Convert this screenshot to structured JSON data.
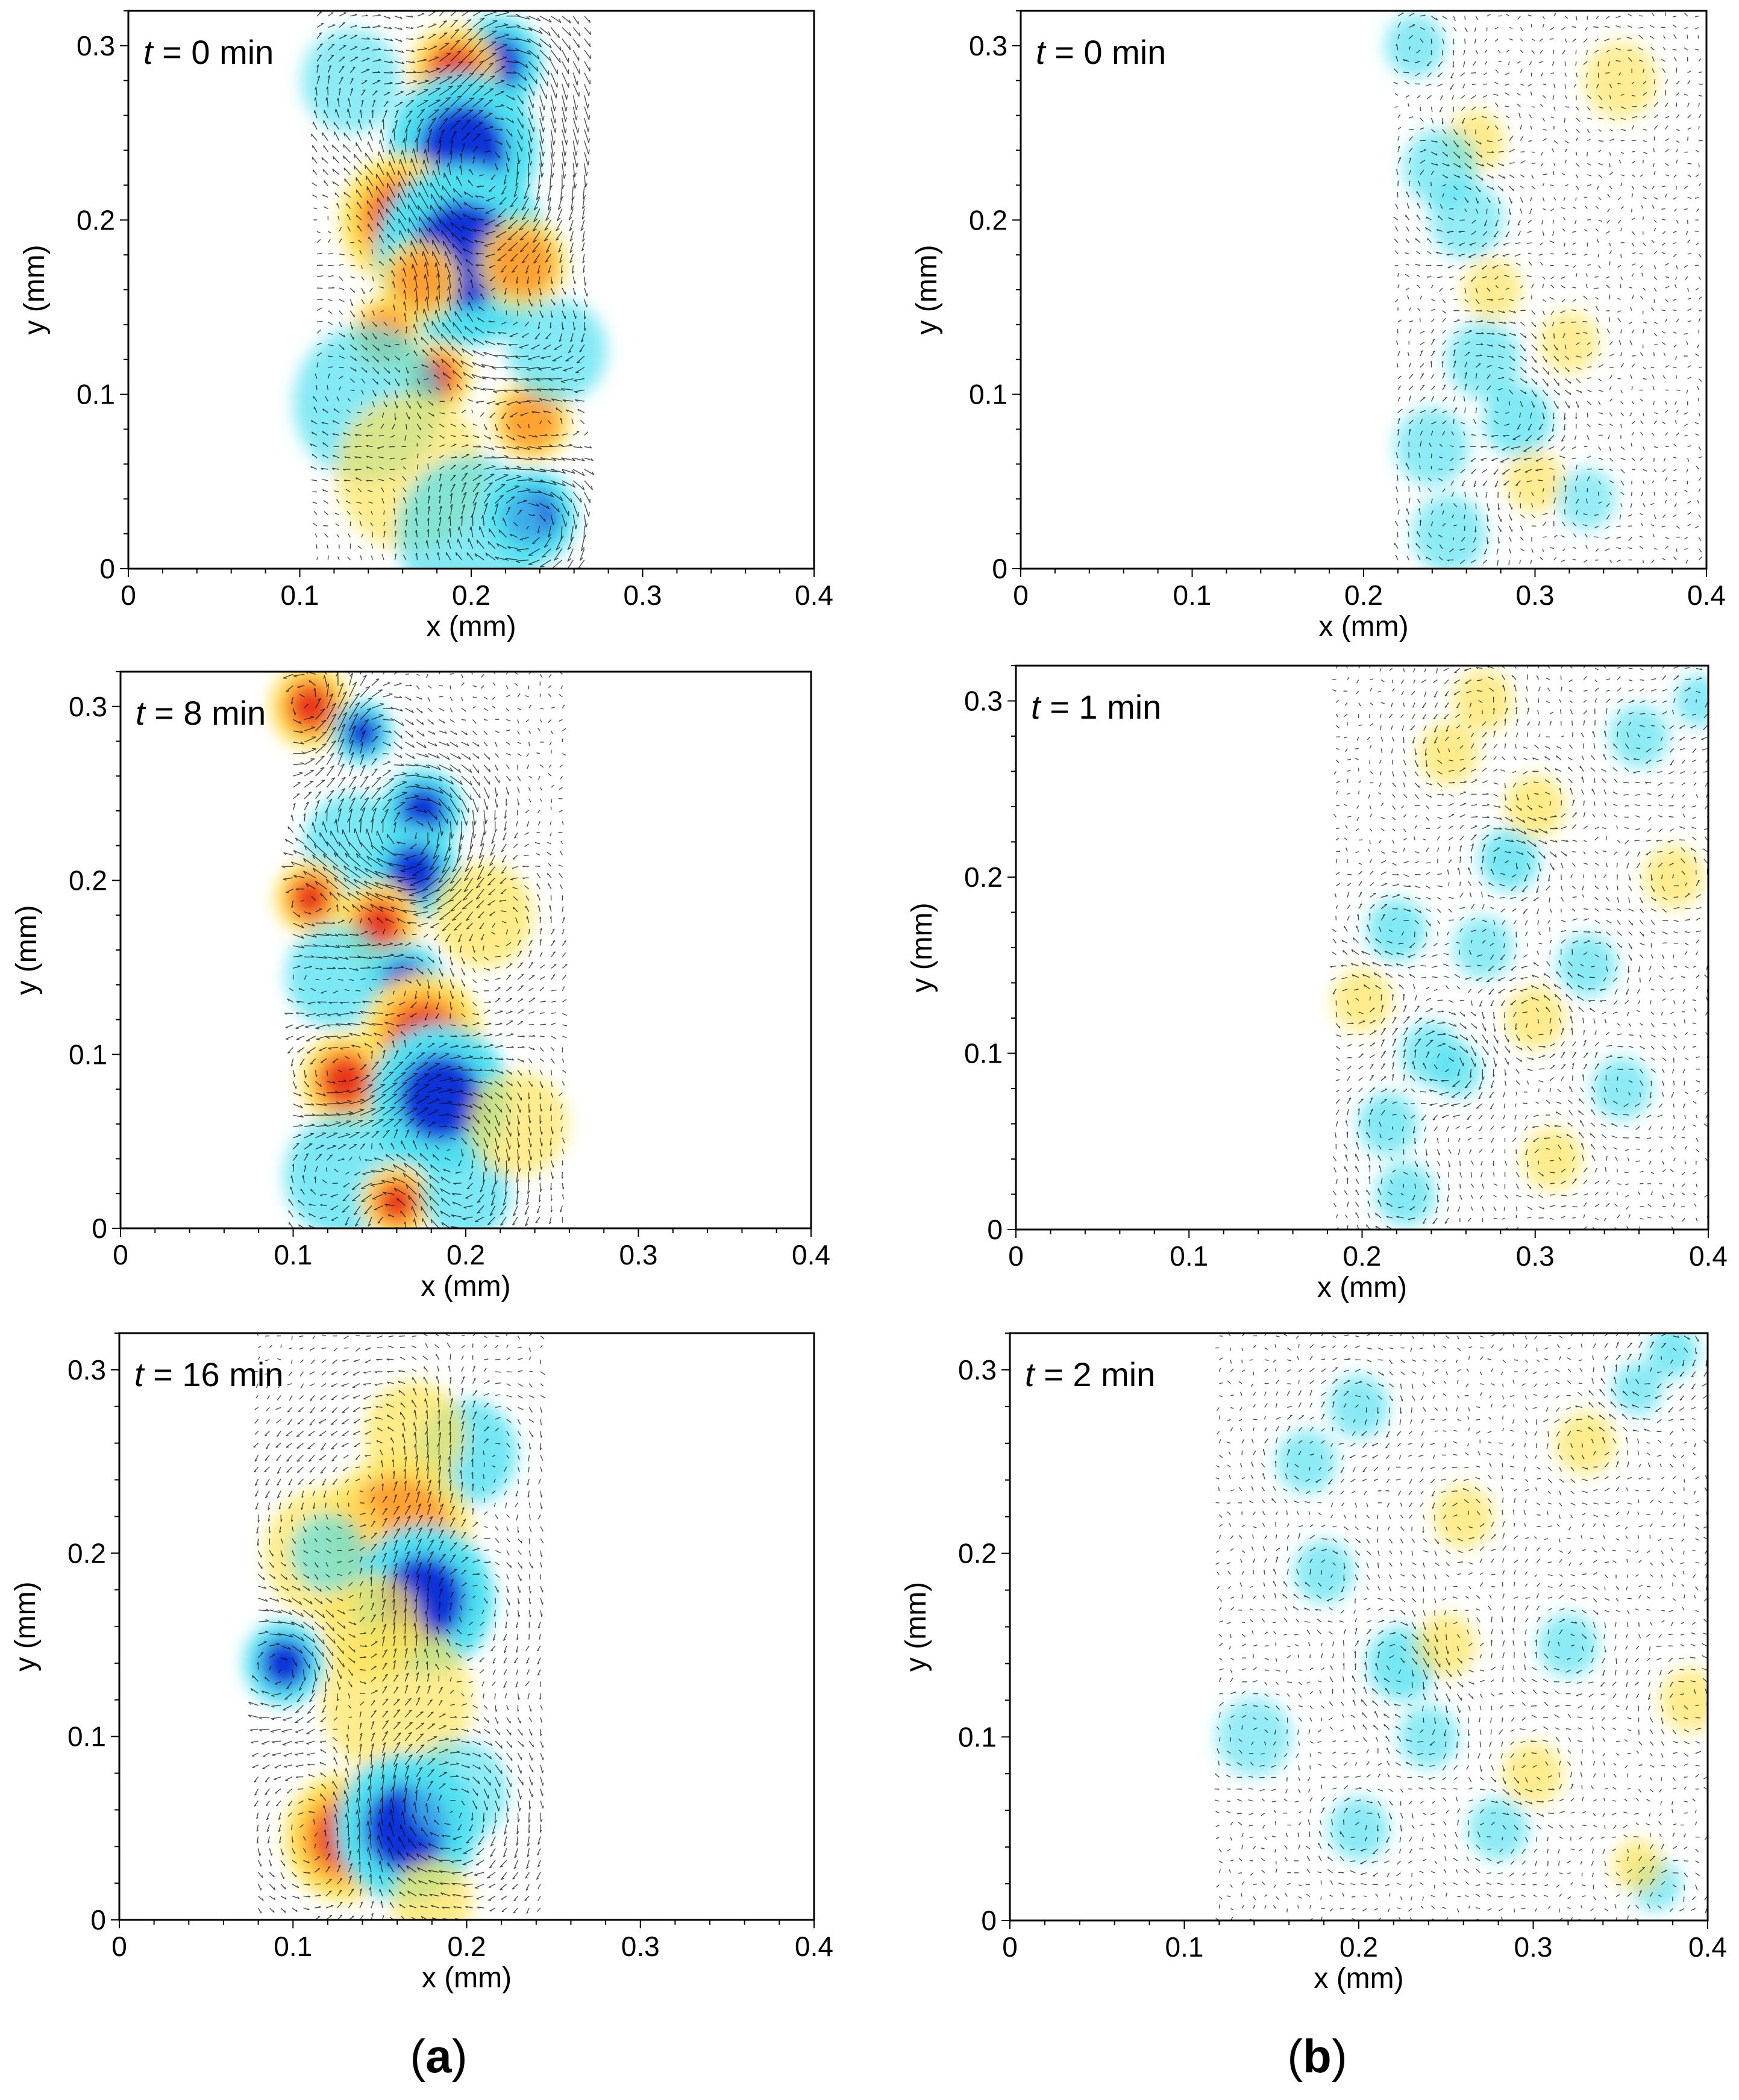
{
  "figure": {
    "group_labels": [
      {
        "open": "(",
        "letter": "a",
        "close": ")"
      },
      {
        "open": "(",
        "letter": "b",
        "close": ")"
      }
    ]
  },
  "colors": {
    "strong_positive": "#e8321e",
    "mid_positive": "#ff9a2a",
    "weak_positive": "#ffe35a",
    "strong_negative": "#1030d8",
    "weak_negative": "#50e0f0",
    "vectors": "#000000",
    "background": "#ffffff"
  },
  "chart_data": [
    {
      "type": "heatmap",
      "column": "a",
      "time_var": "t",
      "time_text": " = 0 min",
      "xlabel": "x (mm)",
      "ylabel": "y (mm)",
      "xlim": [
        0,
        0.4
      ],
      "ylim": [
        0,
        0.32
      ],
      "xticks": [
        "0",
        "0.1",
        "0.2",
        "0.3",
        "0.4"
      ],
      "yticks": [
        "0",
        "0.1",
        "0.2",
        "0.3"
      ],
      "field_extent": {
        "x": [
          0.11,
          0.27
        ],
        "y": [
          0.005,
          0.32
        ]
      },
      "features": [
        {
          "x": 0.215,
          "y": 0.29,
          "sign": -1,
          "strength": 1.0,
          "r": 0.018
        },
        {
          "x": 0.19,
          "y": 0.285,
          "sign": 1,
          "strength": 0.8,
          "r": 0.018
        },
        {
          "x": 0.195,
          "y": 0.24,
          "sign": -1,
          "strength": 1.0,
          "r": 0.03
        },
        {
          "x": 0.16,
          "y": 0.2,
          "sign": 1,
          "strength": 1.0,
          "r": 0.025
        },
        {
          "x": 0.195,
          "y": 0.18,
          "sign": -1,
          "strength": 1.0,
          "r": 0.035
        },
        {
          "x": 0.17,
          "y": 0.165,
          "sign": 1,
          "strength": 0.7,
          "r": 0.016
        },
        {
          "x": 0.23,
          "y": 0.175,
          "sign": 1,
          "strength": 0.6,
          "r": 0.018
        },
        {
          "x": 0.15,
          "y": 0.135,
          "sign": 1,
          "strength": 0.7,
          "r": 0.014
        },
        {
          "x": 0.18,
          "y": 0.11,
          "sign": 1,
          "strength": 0.8,
          "r": 0.014
        },
        {
          "x": 0.14,
          "y": 0.095,
          "sign": -1,
          "strength": 0.4,
          "r": 0.03
        },
        {
          "x": 0.235,
          "y": 0.085,
          "sign": 1,
          "strength": 0.7,
          "r": 0.016
        },
        {
          "x": 0.165,
          "y": 0.055,
          "sign": 1,
          "strength": 0.3,
          "r": 0.03
        },
        {
          "x": 0.235,
          "y": 0.03,
          "sign": -1,
          "strength": 1.0,
          "r": 0.018
        },
        {
          "x": 0.2,
          "y": 0.02,
          "sign": -1,
          "strength": 0.4,
          "r": 0.03
        },
        {
          "x": 0.25,
          "y": 0.125,
          "sign": -1,
          "strength": 0.4,
          "r": 0.02
        },
        {
          "x": 0.13,
          "y": 0.28,
          "sign": -1,
          "strength": 0.3,
          "r": 0.02
        }
      ]
    },
    {
      "type": "heatmap",
      "column": "a",
      "time_var": "t",
      "time_text": " = 8 min",
      "xlabel": "x (mm)",
      "ylabel": "y (mm)",
      "xlim": [
        0,
        0.4
      ],
      "ylim": [
        0,
        0.32
      ],
      "xticks": [
        "0",
        "0.1",
        "0.2",
        "0.3",
        "0.4"
      ],
      "yticks": [
        "0",
        "0.1",
        "0.2",
        "0.3"
      ],
      "field_extent": {
        "x": [
          0.1,
          0.26
        ],
        "y": [
          0.0,
          0.32
        ]
      },
      "features": [
        {
          "x": 0.11,
          "y": 0.3,
          "sign": 1,
          "strength": 1.0,
          "r": 0.016
        },
        {
          "x": 0.14,
          "y": 0.285,
          "sign": -1,
          "strength": 1.0,
          "r": 0.012
        },
        {
          "x": 0.175,
          "y": 0.24,
          "sign": -1,
          "strength": 1.0,
          "r": 0.016
        },
        {
          "x": 0.135,
          "y": 0.22,
          "sign": -1,
          "strength": 0.5,
          "r": 0.02
        },
        {
          "x": 0.17,
          "y": 0.205,
          "sign": -1,
          "strength": 1.0,
          "r": 0.018
        },
        {
          "x": 0.11,
          "y": 0.19,
          "sign": 1,
          "strength": 0.9,
          "r": 0.014
        },
        {
          "x": 0.15,
          "y": 0.175,
          "sign": 1,
          "strength": 1.0,
          "r": 0.016
        },
        {
          "x": 0.125,
          "y": 0.145,
          "sign": -1,
          "strength": 0.5,
          "r": 0.02
        },
        {
          "x": 0.165,
          "y": 0.14,
          "sign": -1,
          "strength": 0.9,
          "r": 0.016
        },
        {
          "x": 0.175,
          "y": 0.11,
          "sign": 1,
          "strength": 1.0,
          "r": 0.024
        },
        {
          "x": 0.13,
          "y": 0.085,
          "sign": 1,
          "strength": 0.8,
          "r": 0.018
        },
        {
          "x": 0.185,
          "y": 0.075,
          "sign": -1,
          "strength": 1.0,
          "r": 0.028
        },
        {
          "x": 0.13,
          "y": 0.03,
          "sign": -1,
          "strength": 0.5,
          "r": 0.024
        },
        {
          "x": 0.16,
          "y": 0.015,
          "sign": 1,
          "strength": 1.0,
          "r": 0.014
        },
        {
          "x": 0.2,
          "y": 0.02,
          "sign": -1,
          "strength": 0.5,
          "r": 0.018
        },
        {
          "x": 0.21,
          "y": 0.18,
          "sign": 1,
          "strength": 0.4,
          "r": 0.02
        },
        {
          "x": 0.23,
          "y": 0.06,
          "sign": 1,
          "strength": 0.3,
          "r": 0.02
        }
      ]
    },
    {
      "type": "heatmap",
      "column": "a",
      "time_var": "t",
      "time_text": " = 16 min",
      "xlabel": "x (mm)",
      "ylabel": "y (mm)",
      "xlim": [
        0,
        0.4
      ],
      "ylim": [
        0,
        0.32
      ],
      "xticks": [
        "0",
        "0.1",
        "0.2",
        "0.3",
        "0.4"
      ],
      "yticks": [
        "0",
        "0.1",
        "0.2",
        "0.3"
      ],
      "field_extent": {
        "x": [
          0.08,
          0.245
        ],
        "y": [
          0.0,
          0.32
        ]
      },
      "features": [
        {
          "x": 0.2,
          "y": 0.255,
          "sign": -1,
          "strength": 0.6,
          "r": 0.02
        },
        {
          "x": 0.17,
          "y": 0.265,
          "sign": 1,
          "strength": 0.4,
          "r": 0.02
        },
        {
          "x": 0.16,
          "y": 0.21,
          "sign": 1,
          "strength": 0.6,
          "r": 0.03
        },
        {
          "x": 0.12,
          "y": 0.2,
          "sign": 1,
          "strength": 0.4,
          "r": 0.025
        },
        {
          "x": 0.175,
          "y": 0.175,
          "sign": -1,
          "strength": 1.0,
          "r": 0.028
        },
        {
          "x": 0.145,
          "y": 0.16,
          "sign": 1,
          "strength": 0.5,
          "r": 0.02
        },
        {
          "x": 0.095,
          "y": 0.14,
          "sign": -1,
          "strength": 0.9,
          "r": 0.016
        },
        {
          "x": 0.12,
          "y": 0.2,
          "sign": -1,
          "strength": 0.3,
          "r": 0.015
        },
        {
          "x": 0.16,
          "y": 0.12,
          "sign": 1,
          "strength": 0.3,
          "r": 0.03
        },
        {
          "x": 0.13,
          "y": 0.045,
          "sign": 1,
          "strength": 1.0,
          "r": 0.024
        },
        {
          "x": 0.165,
          "y": 0.05,
          "sign": -1,
          "strength": 1.0,
          "r": 0.028
        },
        {
          "x": 0.18,
          "y": 0.01,
          "sign": 1,
          "strength": 0.4,
          "r": 0.016
        },
        {
          "x": 0.195,
          "y": 0.07,
          "sign": -1,
          "strength": 0.3,
          "r": 0.02
        }
      ]
    },
    {
      "type": "heatmap",
      "column": "b",
      "time_var": "t",
      "time_text": " = 0 min",
      "xlabel": "x (mm)",
      "ylabel": "y (mm)",
      "xlim": [
        0,
        0.4
      ],
      "ylim": [
        0,
        0.32
      ],
      "xticks": [
        "0",
        "0.1",
        "0.2",
        "0.3",
        "0.4"
      ],
      "yticks": [
        "0",
        "0.1",
        "0.2",
        "0.3"
      ],
      "field_extent": {
        "x": [
          0.22,
          0.4
        ],
        "y": [
          0.005,
          0.32
        ]
      },
      "features": [
        {
          "x": 0.23,
          "y": 0.3,
          "sign": -1,
          "strength": 0.35,
          "r": 0.012
        },
        {
          "x": 0.265,
          "y": 0.245,
          "sign": 1,
          "strength": 0.35,
          "r": 0.012
        },
        {
          "x": 0.245,
          "y": 0.23,
          "sign": -1,
          "strength": 0.3,
          "r": 0.015
        },
        {
          "x": 0.26,
          "y": 0.2,
          "sign": -1,
          "strength": 0.25,
          "r": 0.015
        },
        {
          "x": 0.275,
          "y": 0.16,
          "sign": 1,
          "strength": 0.25,
          "r": 0.012
        },
        {
          "x": 0.27,
          "y": 0.12,
          "sign": -1,
          "strength": 0.3,
          "r": 0.015
        },
        {
          "x": 0.29,
          "y": 0.085,
          "sign": -1,
          "strength": 0.45,
          "r": 0.014
        },
        {
          "x": 0.24,
          "y": 0.07,
          "sign": -1,
          "strength": 0.3,
          "r": 0.015
        },
        {
          "x": 0.3,
          "y": 0.05,
          "sign": 1,
          "strength": 0.25,
          "r": 0.012
        },
        {
          "x": 0.25,
          "y": 0.02,
          "sign": -1,
          "strength": 0.3,
          "r": 0.015
        },
        {
          "x": 0.32,
          "y": 0.13,
          "sign": 1,
          "strength": 0.2,
          "r": 0.012
        },
        {
          "x": 0.35,
          "y": 0.28,
          "sign": 1,
          "strength": 0.2,
          "r": 0.015
        },
        {
          "x": 0.33,
          "y": 0.04,
          "sign": -1,
          "strength": 0.2,
          "r": 0.012
        }
      ]
    },
    {
      "type": "heatmap",
      "column": "b",
      "time_var": "t",
      "time_text": " = 1 min",
      "xlabel": "x (mm)",
      "ylabel": "y (mm)",
      "xlim": [
        0,
        0.4
      ],
      "ylim": [
        0,
        0.32
      ],
      "xticks": [
        "0",
        "0.1",
        "0.2",
        "0.3",
        "0.4"
      ],
      "yticks": [
        "0",
        "0.1",
        "0.2",
        "0.3"
      ],
      "field_extent": {
        "x": [
          0.185,
          0.4
        ],
        "y": [
          0.0,
          0.32
        ]
      },
      "features": [
        {
          "x": 0.285,
          "y": 0.21,
          "sign": -1,
          "strength": 0.55,
          "r": 0.012
        },
        {
          "x": 0.22,
          "y": 0.17,
          "sign": -1,
          "strength": 0.45,
          "r": 0.012
        },
        {
          "x": 0.24,
          "y": 0.1,
          "sign": -1,
          "strength": 0.45,
          "r": 0.012
        },
        {
          "x": 0.255,
          "y": 0.09,
          "sign": -1,
          "strength": 0.45,
          "r": 0.01
        },
        {
          "x": 0.3,
          "y": 0.24,
          "sign": 1,
          "strength": 0.4,
          "r": 0.012
        },
        {
          "x": 0.215,
          "y": 0.06,
          "sign": -1,
          "strength": 0.4,
          "r": 0.012
        },
        {
          "x": 0.225,
          "y": 0.02,
          "sign": -1,
          "strength": 0.4,
          "r": 0.012
        },
        {
          "x": 0.3,
          "y": 0.12,
          "sign": 1,
          "strength": 0.35,
          "r": 0.012
        },
        {
          "x": 0.33,
          "y": 0.15,
          "sign": -1,
          "strength": 0.35,
          "r": 0.012
        },
        {
          "x": 0.36,
          "y": 0.28,
          "sign": -1,
          "strength": 0.3,
          "r": 0.012
        },
        {
          "x": 0.395,
          "y": 0.3,
          "sign": -1,
          "strength": 0.35,
          "r": 0.01
        },
        {
          "x": 0.25,
          "y": 0.27,
          "sign": 1,
          "strength": 0.35,
          "r": 0.012
        },
        {
          "x": 0.27,
          "y": 0.3,
          "sign": 1,
          "strength": 0.35,
          "r": 0.012
        },
        {
          "x": 0.31,
          "y": 0.04,
          "sign": 1,
          "strength": 0.3,
          "r": 0.012
        },
        {
          "x": 0.35,
          "y": 0.08,
          "sign": -1,
          "strength": 0.3,
          "r": 0.012
        },
        {
          "x": 0.2,
          "y": 0.13,
          "sign": 1,
          "strength": 0.3,
          "r": 0.012
        },
        {
          "x": 0.38,
          "y": 0.2,
          "sign": 1,
          "strength": 0.3,
          "r": 0.012
        },
        {
          "x": 0.27,
          "y": 0.16,
          "sign": -1,
          "strength": 0.3,
          "r": 0.012
        }
      ]
    },
    {
      "type": "heatmap",
      "column": "b",
      "time_var": "t",
      "time_text": " = 2 min",
      "xlabel": "x (mm)",
      "ylabel": "y (mm)",
      "xlim": [
        0,
        0.4
      ],
      "ylim": [
        0,
        0.32
      ],
      "xticks": [
        "0",
        "0.1",
        "0.2",
        "0.3",
        "0.4"
      ],
      "yticks": [
        "0",
        "0.1",
        "0.2",
        "0.3"
      ],
      "field_extent": {
        "x": [
          0.12,
          0.4
        ],
        "y": [
          0.0,
          0.32
        ]
      },
      "features": [
        {
          "x": 0.225,
          "y": 0.14,
          "sign": -1,
          "strength": 0.55,
          "r": 0.014
        },
        {
          "x": 0.2,
          "y": 0.28,
          "sign": -1,
          "strength": 0.35,
          "r": 0.012
        },
        {
          "x": 0.38,
          "y": 0.31,
          "sign": -1,
          "strength": 0.45,
          "r": 0.01
        },
        {
          "x": 0.36,
          "y": 0.29,
          "sign": -1,
          "strength": 0.35,
          "r": 0.01
        },
        {
          "x": 0.17,
          "y": 0.25,
          "sign": -1,
          "strength": 0.3,
          "r": 0.012
        },
        {
          "x": 0.26,
          "y": 0.22,
          "sign": 1,
          "strength": 0.3,
          "r": 0.012
        },
        {
          "x": 0.18,
          "y": 0.19,
          "sign": -1,
          "strength": 0.35,
          "r": 0.012
        },
        {
          "x": 0.25,
          "y": 0.15,
          "sign": 1,
          "strength": 0.35,
          "r": 0.012
        },
        {
          "x": 0.2,
          "y": 0.05,
          "sign": -1,
          "strength": 0.35,
          "r": 0.012
        },
        {
          "x": 0.24,
          "y": 0.1,
          "sign": -1,
          "strength": 0.3,
          "r": 0.012
        },
        {
          "x": 0.3,
          "y": 0.08,
          "sign": 1,
          "strength": 0.3,
          "r": 0.012
        },
        {
          "x": 0.37,
          "y": 0.02,
          "sign": -1,
          "strength": 0.4,
          "r": 0.01
        },
        {
          "x": 0.36,
          "y": 0.03,
          "sign": 1,
          "strength": 0.35,
          "r": 0.01
        },
        {
          "x": 0.33,
          "y": 0.26,
          "sign": 1,
          "strength": 0.3,
          "r": 0.012
        },
        {
          "x": 0.28,
          "y": 0.05,
          "sign": -1,
          "strength": 0.3,
          "r": 0.012
        },
        {
          "x": 0.14,
          "y": 0.1,
          "sign": -1,
          "strength": 0.2,
          "r": 0.015
        },
        {
          "x": 0.32,
          "y": 0.15,
          "sign": -1,
          "strength": 0.3,
          "r": 0.012
        },
        {
          "x": 0.39,
          "y": 0.12,
          "sign": 1,
          "strength": 0.3,
          "r": 0.012
        }
      ]
    }
  ]
}
